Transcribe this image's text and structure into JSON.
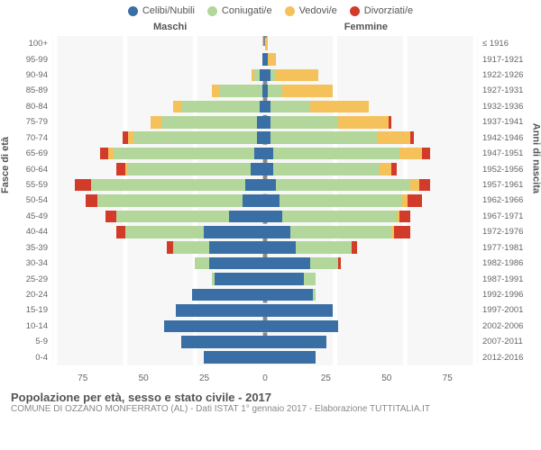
{
  "legend": [
    {
      "label": "Celibi/Nubili",
      "color": "#3a6fa6"
    },
    {
      "label": "Coniugati/e",
      "color": "#b3d69b"
    },
    {
      "label": "Vedovi/e",
      "color": "#f5c15a"
    },
    {
      "label": "Divorziati/e",
      "color": "#d23b2a"
    }
  ],
  "side_left": "Maschi",
  "side_right": "Femmine",
  "axis_left": "Fasce di età",
  "axis_right": "Anni di nascita",
  "xticks_left": [
    "75",
    "50",
    "25"
  ],
  "xticks_right": [
    "25",
    "50",
    "75"
  ],
  "scale_max": 76,
  "age_labels": [
    "100+",
    "95-99",
    "90-94",
    "85-89",
    "80-84",
    "75-79",
    "70-74",
    "65-69",
    "60-64",
    "55-59",
    "50-54",
    "45-49",
    "40-44",
    "35-39",
    "30-34",
    "25-29",
    "20-24",
    "15-19",
    "10-14",
    "5-9",
    "0-4"
  ],
  "year_labels": [
    "≤ 1916",
    "1917-1921",
    "1922-1926",
    "1927-1931",
    "1932-1936",
    "1937-1941",
    "1942-1946",
    "1947-1951",
    "1952-1956",
    "1957-1961",
    "1962-1966",
    "1967-1971",
    "1972-1976",
    "1977-1981",
    "1982-1986",
    "1987-1991",
    "1992-1996",
    "1997-2001",
    "2002-2006",
    "2007-2011",
    "2012-2016"
  ],
  "bars": [
    {
      "m": {
        "c": 0,
        "m": 0,
        "w": 0,
        "d": 0
      },
      "f": {
        "c": 0,
        "m": 0,
        "w": 1,
        "d": 0
      }
    },
    {
      "m": {
        "c": 1,
        "m": 0,
        "w": 0,
        "d": 0
      },
      "f": {
        "c": 1,
        "m": 0,
        "w": 3,
        "d": 0
      }
    },
    {
      "m": {
        "c": 2,
        "m": 2,
        "w": 1,
        "d": 0
      },
      "f": {
        "c": 2,
        "m": 2,
        "w": 15,
        "d": 0
      }
    },
    {
      "m": {
        "c": 1,
        "m": 15,
        "w": 3,
        "d": 0
      },
      "f": {
        "c": 1,
        "m": 5,
        "w": 18,
        "d": 0
      }
    },
    {
      "m": {
        "c": 2,
        "m": 28,
        "w": 3,
        "d": 0
      },
      "f": {
        "c": 2,
        "m": 14,
        "w": 21,
        "d": 0
      }
    },
    {
      "m": {
        "c": 3,
        "m": 34,
        "w": 4,
        "d": 0
      },
      "f": {
        "c": 2,
        "m": 24,
        "w": 18,
        "d": 1
      }
    },
    {
      "m": {
        "c": 3,
        "m": 44,
        "w": 2,
        "d": 2
      },
      "f": {
        "c": 2,
        "m": 38,
        "w": 12,
        "d": 1
      }
    },
    {
      "m": {
        "c": 4,
        "m": 50,
        "w": 2,
        "d": 3
      },
      "f": {
        "c": 3,
        "m": 45,
        "w": 8,
        "d": 3
      }
    },
    {
      "m": {
        "c": 5,
        "m": 44,
        "w": 1,
        "d": 3
      },
      "f": {
        "c": 3,
        "m": 38,
        "w": 4,
        "d": 2
      }
    },
    {
      "m": {
        "c": 7,
        "m": 55,
        "w": 0,
        "d": 6
      },
      "f": {
        "c": 4,
        "m": 48,
        "w": 3,
        "d": 4
      }
    },
    {
      "m": {
        "c": 8,
        "m": 52,
        "w": 0,
        "d": 4
      },
      "f": {
        "c": 5,
        "m": 44,
        "w": 2,
        "d": 5
      }
    },
    {
      "m": {
        "c": 13,
        "m": 40,
        "w": 0,
        "d": 4
      },
      "f": {
        "c": 6,
        "m": 41,
        "w": 1,
        "d": 4
      }
    },
    {
      "m": {
        "c": 22,
        "m": 28,
        "w": 0,
        "d": 3
      },
      "f": {
        "c": 9,
        "m": 36,
        "w": 1,
        "d": 6
      }
    },
    {
      "m": {
        "c": 20,
        "m": 13,
        "w": 0,
        "d": 2
      },
      "f": {
        "c": 11,
        "m": 20,
        "w": 0,
        "d": 2
      }
    },
    {
      "m": {
        "c": 20,
        "m": 5,
        "w": 0,
        "d": 0
      },
      "f": {
        "c": 16,
        "m": 10,
        "w": 0,
        "d": 1
      }
    },
    {
      "m": {
        "c": 18,
        "m": 1,
        "w": 0,
        "d": 0
      },
      "f": {
        "c": 14,
        "m": 4,
        "w": 0,
        "d": 0
      }
    },
    {
      "m": {
        "c": 26,
        "m": 0,
        "w": 0,
        "d": 0
      },
      "f": {
        "c": 17,
        "m": 1,
        "w": 0,
        "d": 0
      }
    },
    {
      "m": {
        "c": 32,
        "m": 0,
        "w": 0,
        "d": 0
      },
      "f": {
        "c": 24,
        "m": 0,
        "w": 0,
        "d": 0
      }
    },
    {
      "m": {
        "c": 36,
        "m": 0,
        "w": 0,
        "d": 0
      },
      "f": {
        "c": 26,
        "m": 0,
        "w": 0,
        "d": 0
      }
    },
    {
      "m": {
        "c": 30,
        "m": 0,
        "w": 0,
        "d": 0
      },
      "f": {
        "c": 22,
        "m": 0,
        "w": 0,
        "d": 0
      }
    },
    {
      "m": {
        "c": 22,
        "m": 0,
        "w": 0,
        "d": 0
      },
      "f": {
        "c": 18,
        "m": 0,
        "w": 0,
        "d": 0
      }
    }
  ],
  "colors": {
    "c": "#3a6fa6",
    "m": "#b3d69b",
    "w": "#f5c15a",
    "d": "#d23b2a"
  },
  "footer": {
    "title": "Popolazione per età, sesso e stato civile - 2017",
    "sub": "COMUNE DI OZZANO MONFERRATO (AL) - Dati ISTAT 1° gennaio 2017 - Elaborazione TUTTITALIA.IT"
  }
}
